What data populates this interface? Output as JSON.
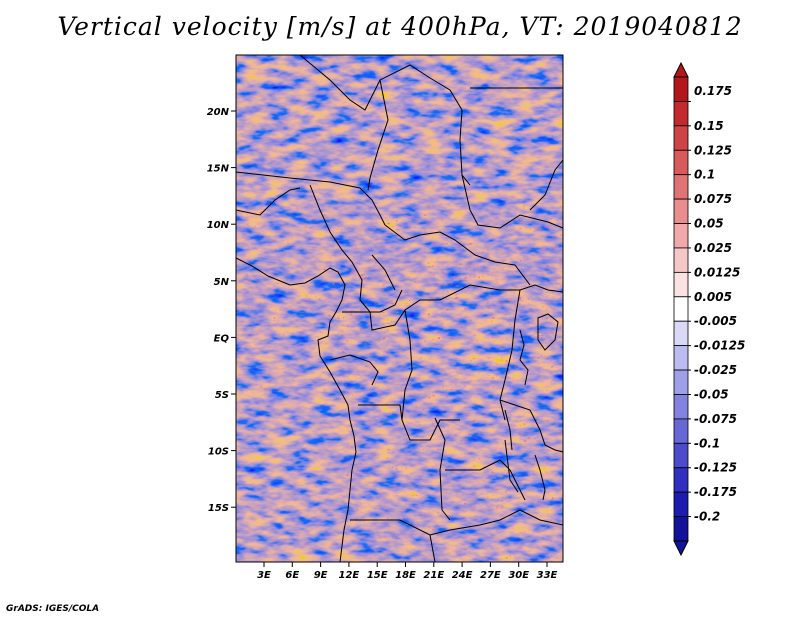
{
  "title": "Vertical velocity [m/s] at 400hPa, VT: 2019040812",
  "credit": "GrADS: IGES/COLA",
  "map": {
    "lon_labels": [
      "3E",
      "6E",
      "9E",
      "12E",
      "15E",
      "18E",
      "21E",
      "24E",
      "27E",
      "30E",
      "33E"
    ],
    "lat_labels": [
      "20N",
      "15N",
      "10N",
      "5N",
      "EQ",
      "5S",
      "10S",
      "15S"
    ]
  },
  "colorbar": {
    "labels": [
      "0.175",
      "0.15",
      "0.125",
      "0.1",
      "0.075",
      "0.05",
      "0.025",
      "0.0125",
      "0.005",
      "-0.005",
      "-0.0125",
      "-0.025",
      "-0.05",
      "-0.075",
      "-0.1",
      "-0.125",
      "-0.175",
      "-0.2"
    ],
    "colors_top_to_bottom": [
      "#b3171c",
      "#c22a2d",
      "#cf4446",
      "#d85b5c",
      "#e07474",
      "#e98e8e",
      "#f1a9a9",
      "#f7c6c6",
      "#fbe1e1",
      "#ffffff",
      "#d9d9f7",
      "#bcbcf0",
      "#a0a0e8",
      "#8383df",
      "#6767d6",
      "#4b4bcc",
      "#3030c0",
      "#1c1cae",
      "#12129a"
    ]
  }
}
